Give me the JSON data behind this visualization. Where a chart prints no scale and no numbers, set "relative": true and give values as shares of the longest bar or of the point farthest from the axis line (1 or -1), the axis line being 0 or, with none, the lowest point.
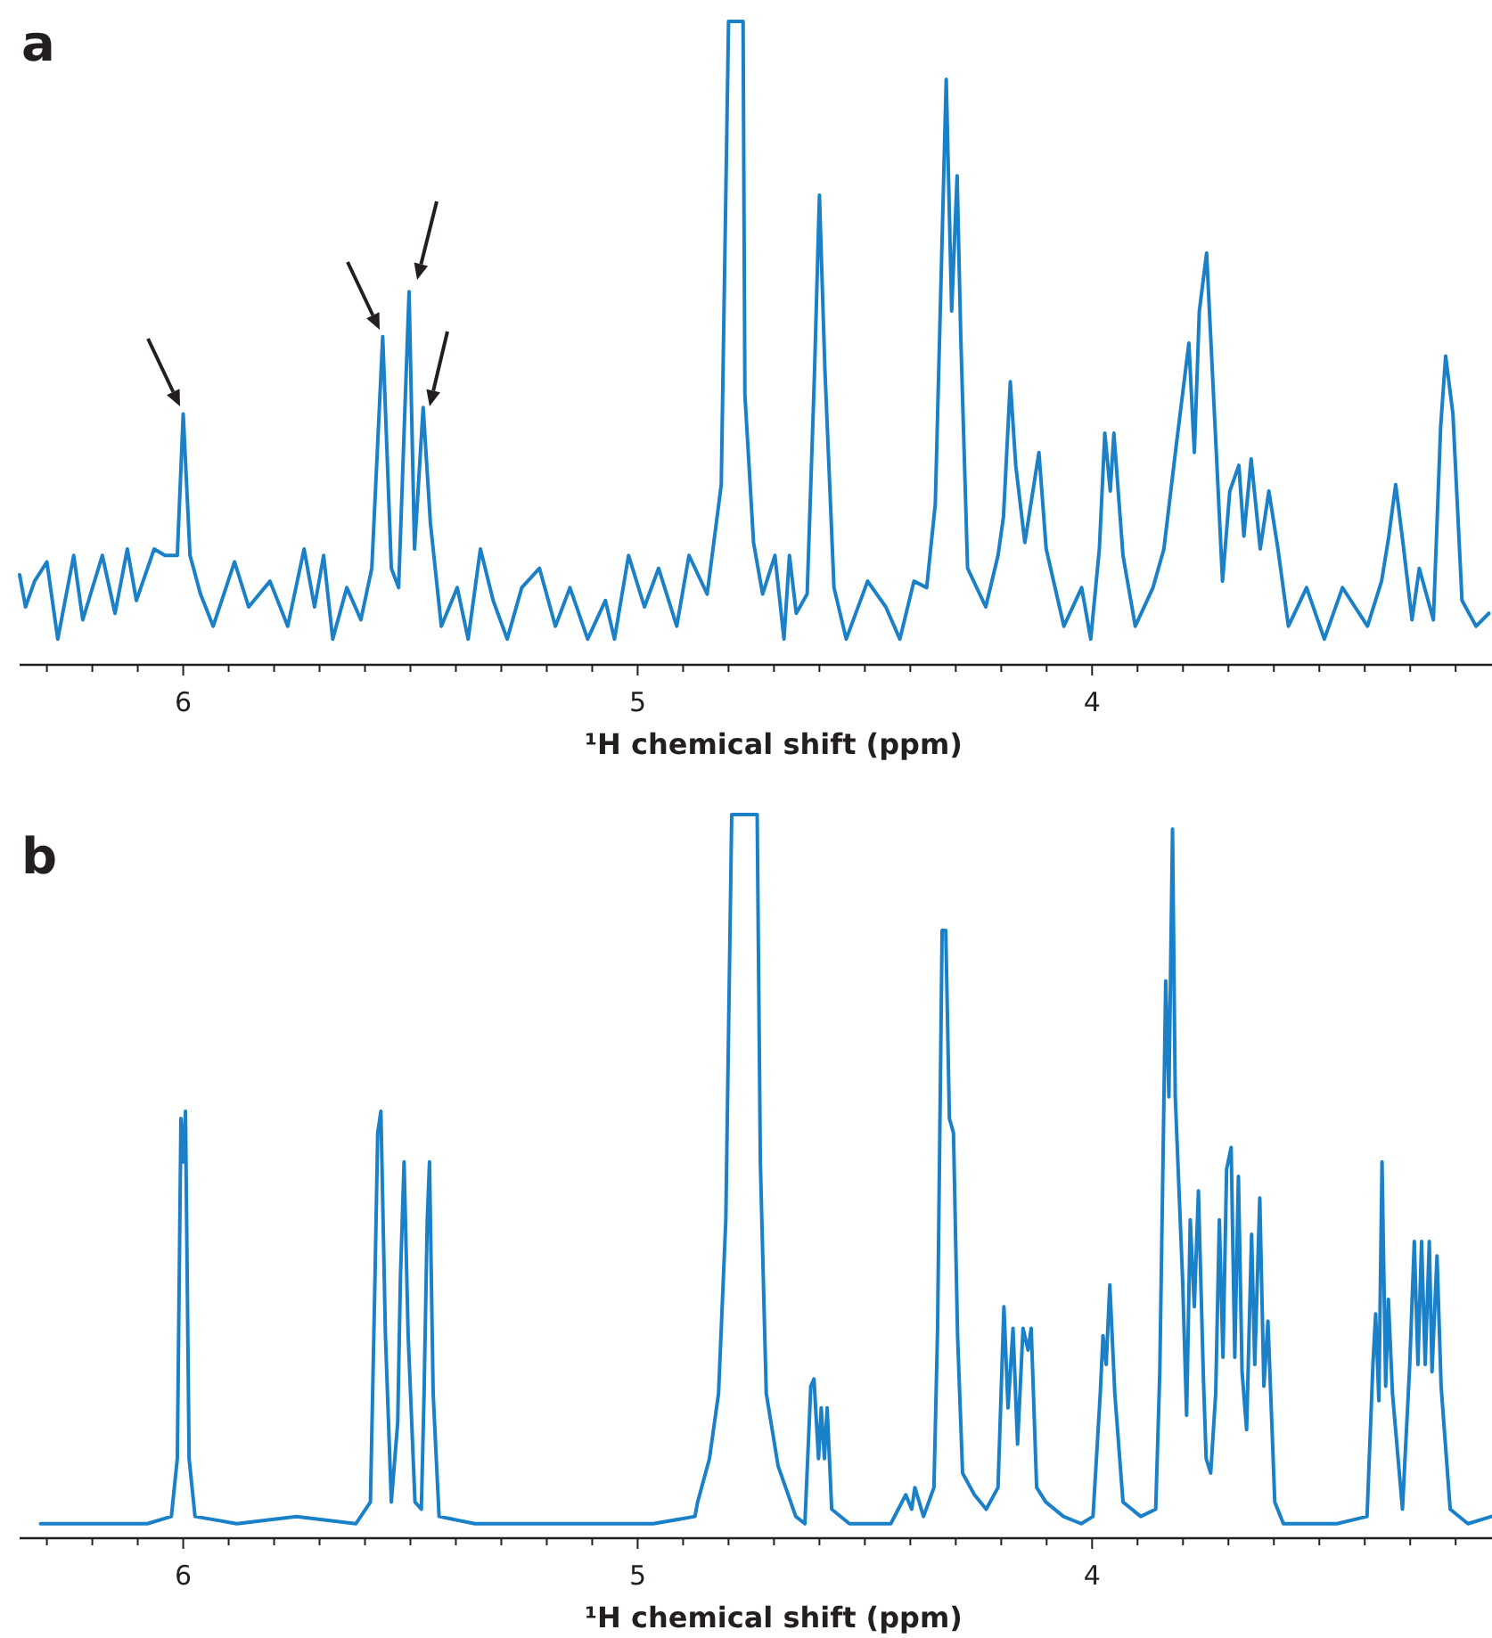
{
  "chart_data": [
    {
      "type": "line",
      "title": "a",
      "xlabel": "¹H chemical shift (ppm)",
      "relative": true,
      "xlim": [
        6.36,
        3.12
      ],
      "xticks": [
        {
          "value": 6.3,
          "label": null
        },
        {
          "value": 6.2,
          "label": null
        },
        {
          "value": 6.1,
          "label": null
        },
        6,
        {
          "value": 5.9,
          "label": null
        },
        {
          "value": 5.8,
          "label": null
        },
        {
          "value": 5.7,
          "label": null
        },
        {
          "value": 5.6,
          "label": null
        },
        {
          "value": 5.5,
          "label": null
        },
        {
          "value": 5.4,
          "label": null
        },
        {
          "value": 5.3,
          "label": null
        },
        {
          "value": 5.2,
          "label": null
        },
        {
          "value": 5.1,
          "label": null
        },
        5,
        {
          "value": 4.9,
          "label": null
        },
        {
          "value": 4.8,
          "label": null
        },
        {
          "value": 4.7,
          "label": null
        },
        {
          "value": 4.6,
          "label": null
        },
        {
          "value": 4.5,
          "label": null
        },
        {
          "value": 4.4,
          "label": null
        },
        {
          "value": 4.3,
          "label": null
        },
        {
          "value": 4.2,
          "label": null
        },
        {
          "value": 4.1,
          "label": null
        },
        4,
        {
          "value": 3.9,
          "label": null
        },
        {
          "value": 3.8,
          "label": null
        },
        {
          "value": 3.7,
          "label": null
        },
        {
          "value": 3.6,
          "label": null
        },
        {
          "value": 3.5,
          "label": null
        },
        {
          "value": 3.4,
          "label": null
        },
        {
          "value": 3.3,
          "label": null
        },
        {
          "value": 3.2,
          "label": null
        }
      ],
      "series": [
        {
          "color": "#1a80c8",
          "x": [
            6.36,
            6.347,
            6.327,
            6.3,
            6.276,
            6.241,
            6.221,
            6.178,
            6.15,
            6.123,
            6.103,
            6.064,
            6.04,
            6.013,
            6.0,
            5.985,
            5.962,
            5.934,
            5.887,
            5.856,
            5.809,
            5.77,
            5.734,
            5.711,
            5.691,
            5.671,
            5.64,
            5.609,
            5.585,
            5.561,
            5.542,
            5.526,
            5.503,
            5.491,
            5.472,
            5.456,
            5.432,
            5.397,
            5.373,
            5.346,
            5.318,
            5.287,
            5.255,
            5.216,
            5.181,
            5.149,
            5.11,
            5.071,
            5.051,
            5.02,
            4.985,
            4.954,
            4.914,
            4.887,
            4.847,
            4.816,
            4.8,
            4.768,
            4.764,
            4.745,
            4.725,
            4.698,
            4.678,
            4.666,
            4.651,
            4.627,
            4.611,
            4.6,
            4.588,
            4.568,
            4.541,
            4.494,
            4.454,
            4.423,
            4.392,
            4.364,
            4.345,
            4.321,
            4.309,
            4.297,
            4.289,
            4.274,
            4.234,
            4.207,
            4.195,
            4.18,
            4.168,
            4.148,
            4.117,
            4.101,
            4.062,
            4.023,
            4.003,
            3.984,
            3.972,
            3.96,
            3.952,
            3.932,
            3.905,
            3.866,
            3.842,
            3.815,
            3.787,
            3.775,
            3.764,
            3.748,
            3.728,
            3.713,
            3.697,
            3.677,
            3.666,
            3.65,
            3.63,
            3.611,
            3.591,
            3.568,
            3.528,
            3.489,
            3.449,
            3.394,
            3.363,
            3.347,
            3.332,
            3.316,
            3.296,
            3.28,
            3.249,
            3.233,
            3.222,
            3.206,
            3.186,
            3.155,
            3.127
          ],
          "values": [
            0.14,
            0.09,
            0.13,
            0.16,
            0.04,
            0.17,
            0.07,
            0.17,
            0.08,
            0.18,
            0.1,
            0.18,
            0.17,
            0.17,
            0.39,
            0.17,
            0.11,
            0.06,
            0.16,
            0.09,
            0.13,
            0.06,
            0.18,
            0.09,
            0.17,
            0.04,
            0.12,
            0.07,
            0.15,
            0.51,
            0.15,
            0.12,
            0.58,
            0.18,
            0.4,
            0.22,
            0.06,
            0.12,
            0.04,
            0.18,
            0.1,
            0.04,
            0.12,
            0.15,
            0.06,
            0.12,
            0.04,
            0.1,
            0.04,
            0.17,
            0.09,
            0.15,
            0.06,
            0.17,
            0.11,
            0.28,
            1,
            1,
            0.42,
            0.19,
            0.11,
            0.17,
            0.04,
            0.17,
            0.08,
            0.11,
            0.45,
            0.73,
            0.46,
            0.12,
            0.04,
            0.13,
            0.09,
            0.04,
            0.13,
            0.12,
            0.25,
            0.91,
            0.55,
            0.76,
            0.51,
            0.15,
            0.09,
            0.17,
            0.23,
            0.44,
            0.31,
            0.19,
            0.33,
            0.18,
            0.06,
            0.12,
            0.04,
            0.18,
            0.36,
            0.27,
            0.36,
            0.17,
            0.06,
            0.12,
            0.18,
            0.34,
            0.5,
            0.33,
            0.55,
            0.64,
            0.35,
            0.13,
            0.27,
            0.31,
            0.2,
            0.32,
            0.18,
            0.27,
            0.18,
            0.06,
            0.12,
            0.04,
            0.12,
            0.06,
            0.13,
            0.2,
            0.28,
            0.19,
            0.07,
            0.15,
            0.07,
            0.37,
            0.48,
            0.39,
            0.1,
            0.06,
            0.08
          ]
        }
      ]
    },
    {
      "type": "line",
      "title": "b",
      "xlabel": "¹H chemical shift (ppm)",
      "relative": true,
      "xlim": [
        6.36,
        3.12
      ],
      "xticks": [
        {
          "value": 6.3,
          "label": null
        },
        {
          "value": 6.2,
          "label": null
        },
        {
          "value": 6.1,
          "label": null
        },
        6,
        {
          "value": 5.9,
          "label": null
        },
        {
          "value": 5.8,
          "label": null
        },
        {
          "value": 5.7,
          "label": null
        },
        {
          "value": 5.6,
          "label": null
        },
        {
          "value": 5.5,
          "label": null
        },
        {
          "value": 5.4,
          "label": null
        },
        {
          "value": 5.3,
          "label": null
        },
        {
          "value": 5.2,
          "label": null
        },
        {
          "value": 5.1,
          "label": null
        },
        5,
        {
          "value": 4.9,
          "label": null
        },
        {
          "value": 4.8,
          "label": null
        },
        {
          "value": 4.7,
          "label": null
        },
        {
          "value": 4.6,
          "label": null
        },
        {
          "value": 4.5,
          "label": null
        },
        {
          "value": 4.4,
          "label": null
        },
        {
          "value": 4.3,
          "label": null
        },
        {
          "value": 4.2,
          "label": null
        },
        {
          "value": 4.1,
          "label": null
        },
        4,
        {
          "value": 3.9,
          "label": null
        },
        {
          "value": 3.8,
          "label": null
        },
        {
          "value": 3.7,
          "label": null
        },
        {
          "value": 3.6,
          "label": null
        },
        {
          "value": 3.5,
          "label": null
        },
        {
          "value": 3.4,
          "label": null
        },
        {
          "value": 3.3,
          "label": null
        },
        {
          "value": 3.2,
          "label": null
        }
      ],
      "series": [
        {
          "color": "#1a80c8",
          "x": [
            6.314,
            6.209,
            6.079,
            6.026,
            6.013,
            6.005,
            6.0,
            5.995,
            5.987,
            5.974,
            5.882,
            5.751,
            5.62,
            5.588,
            5.578,
            5.572,
            5.565,
            5.555,
            5.542,
            5.528,
            5.522,
            5.514,
            5.505,
            5.49,
            5.476,
            5.47,
            5.463,
            5.458,
            5.45,
            5.437,
            5.358,
            5.228,
            5.097,
            4.966,
            4.874,
            4.868,
            4.842,
            4.822,
            4.806,
            4.793,
            4.737,
            4.73,
            4.717,
            4.691,
            4.652,
            4.632,
            4.619,
            4.612,
            4.602,
            4.596,
            4.589,
            4.583,
            4.573,
            4.534,
            4.443,
            4.41,
            4.397,
            4.39,
            4.371,
            4.348,
            4.34,
            4.33,
            4.322,
            4.314,
            4.305,
            4.296,
            4.285,
            4.259,
            4.233,
            4.207,
            4.194,
            4.185,
            4.174,
            4.164,
            4.152,
            4.141,
            4.134,
            4.122,
            4.102,
            4.063,
            4.024,
            3.998,
            3.982,
            3.976,
            3.969,
            3.961,
            3.95,
            3.932,
            3.893,
            3.86,
            3.851,
            3.838,
            3.831,
            3.823,
            3.817,
            3.801,
            3.792,
            3.784,
            3.775,
            3.766,
            3.755,
            3.749,
            3.739,
            3.728,
            3.72,
            3.712,
            3.704,
            3.694,
            3.686,
            3.678,
            3.67,
            3.66,
            3.649,
            3.642,
            3.631,
            3.622,
            3.613,
            3.598,
            3.579,
            3.527,
            3.461,
            3.395,
            3.382,
            3.376,
            3.369,
            3.362,
            3.354,
            3.348,
            3.339,
            3.317,
            3.301,
            3.291,
            3.283,
            3.275,
            3.267,
            3.258,
            3.252,
            3.241,
            3.232,
            3.212,
            3.173,
            3.121
          ],
          "values": [
            0.02,
            0.02,
            0.02,
            0.03,
            0.11,
            0.58,
            0.52,
            0.59,
            0.11,
            0.03,
            0.02,
            0.03,
            0.02,
            0.05,
            0.36,
            0.56,
            0.59,
            0.28,
            0.05,
            0.16,
            0.36,
            0.52,
            0.28,
            0.05,
            0.04,
            0.2,
            0.44,
            0.52,
            0.2,
            0.03,
            0.02,
            0.02,
            0.02,
            0.02,
            0.03,
            0.05,
            0.11,
            0.2,
            0.44,
            1,
            1,
            0.52,
            0.2,
            0.1,
            0.03,
            0.02,
            0.21,
            0.22,
            0.11,
            0.18,
            0.11,
            0.18,
            0.04,
            0.02,
            0.02,
            0.06,
            0.04,
            0.07,
            0.03,
            0.07,
            0.29,
            0.84,
            0.84,
            0.58,
            0.56,
            0.28,
            0.09,
            0.06,
            0.04,
            0.07,
            0.32,
            0.18,
            0.29,
            0.13,
            0.29,
            0.26,
            0.29,
            0.07,
            0.05,
            0.03,
            0.02,
            0.03,
            0.2,
            0.28,
            0.24,
            0.35,
            0.2,
            0.05,
            0.03,
            0.04,
            0.23,
            0.77,
            0.61,
            0.98,
            0.61,
            0.36,
            0.17,
            0.44,
            0.32,
            0.48,
            0.22,
            0.11,
            0.09,
            0.2,
            0.44,
            0.25,
            0.51,
            0.54,
            0.25,
            0.5,
            0.23,
            0.15,
            0.42,
            0.24,
            0.47,
            0.21,
            0.3,
            0.05,
            0.02,
            0.02,
            0.02,
            0.03,
            0.24,
            0.31,
            0.19,
            0.52,
            0.21,
            0.33,
            0.2,
            0.04,
            0.24,
            0.41,
            0.24,
            0.41,
            0.24,
            0.41,
            0.23,
            0.39,
            0.21,
            0.04,
            0.02,
            0.03
          ]
        }
      ]
    }
  ]
}
